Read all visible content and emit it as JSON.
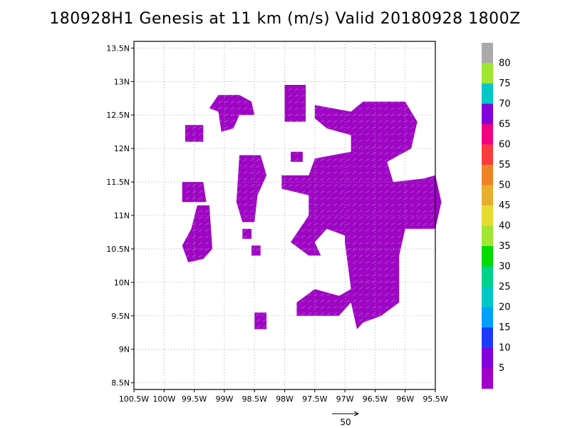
{
  "title": "180928H1 Genesis at 11 km (m/s) Valid 20180928 1800Z",
  "colors": {
    "wind_fill": "#9f06c4",
    "wind_fill_deep": "#7d11dc",
    "arrow": "#d9c9f0",
    "grid": "#9a9a9a"
  },
  "chart_data": {
    "type": "heatmap",
    "title": "180928H1 Genesis at 11 km (m/s) Valid 20180928 1800Z",
    "x_ticks": [
      "100.5W",
      "100W",
      "99.5W",
      "99W",
      "98.5W",
      "98W",
      "97.5W",
      "97W",
      "96.5W",
      "96W",
      "95.5W"
    ],
    "y_ticks": [
      "8.5N",
      "9N",
      "9.5N",
      "10N",
      "10.5N",
      "11N",
      "11.5N",
      "12N",
      "12.5N",
      "13N",
      "13.5N"
    ],
    "lon_range": [
      -100.5,
      -95.5
    ],
    "lat_range": [
      8.4,
      13.6
    ],
    "grid": true,
    "colorbar": {
      "labels": [
        "5",
        "10",
        "15",
        "20",
        "25",
        "30",
        "35",
        "40",
        "45",
        "50",
        "55",
        "60",
        "65",
        "70",
        "75",
        "80"
      ],
      "colors": [
        "#a000c8",
        "#8200dc",
        "#1e3cff",
        "#00a0ff",
        "#00c8c8",
        "#00d28c",
        "#00dc00",
        "#a0e632",
        "#e6dc32",
        "#e6af2d",
        "#f08228",
        "#fa3c3c",
        "#f00082",
        "#8200dc",
        "#00c8c8",
        "#a0e632",
        "#aaaaaa"
      ]
    },
    "wind_regions_lonlat": [
      [
        [
          -99.65,
          12.35
        ],
        [
          -99.35,
          12.35
        ],
        [
          -99.35,
          12.1
        ],
        [
          -99.65,
          12.1
        ]
      ],
      [
        [
          -99.1,
          12.8
        ],
        [
          -98.75,
          12.8
        ],
        [
          -98.55,
          12.7
        ],
        [
          -98.5,
          12.5
        ],
        [
          -98.75,
          12.5
        ],
        [
          -98.85,
          12.3
        ],
        [
          -99.05,
          12.25
        ],
        [
          -99.1,
          12.55
        ],
        [
          -99.25,
          12.6
        ]
      ],
      [
        [
          -99.7,
          11.5
        ],
        [
          -99.35,
          11.5
        ],
        [
          -99.3,
          11.2
        ],
        [
          -99.7,
          11.2
        ]
      ],
      [
        [
          -99.45,
          11.15
        ],
        [
          -99.25,
          11.15
        ],
        [
          -99.2,
          10.5
        ],
        [
          -99.35,
          10.35
        ],
        [
          -99.6,
          10.3
        ],
        [
          -99.7,
          10.55
        ],
        [
          -99.55,
          10.8
        ]
      ],
      [
        [
          -98.75,
          11.9
        ],
        [
          -98.4,
          11.9
        ],
        [
          -98.3,
          11.6
        ],
        [
          -98.45,
          11.3
        ],
        [
          -98.5,
          10.9
        ],
        [
          -98.7,
          10.9
        ],
        [
          -98.8,
          11.2
        ]
      ],
      [
        [
          -98.7,
          10.8
        ],
        [
          -98.55,
          10.8
        ],
        [
          -98.55,
          10.65
        ],
        [
          -98.7,
          10.65
        ]
      ],
      [
        [
          -98.55,
          10.55
        ],
        [
          -98.4,
          10.55
        ],
        [
          -98.4,
          10.4
        ],
        [
          -98.55,
          10.4
        ]
      ],
      [
        [
          -98.5,
          9.55
        ],
        [
          -98.3,
          9.55
        ],
        [
          -98.3,
          9.3
        ],
        [
          -98.5,
          9.3
        ]
      ],
      [
        [
          -98.0,
          12.95
        ],
        [
          -97.65,
          12.95
        ],
        [
          -97.65,
          12.4
        ],
        [
          -98.0,
          12.4
        ]
      ],
      [
        [
          -97.5,
          12.65
        ],
        [
          -96.9,
          12.55
        ],
        [
          -96.7,
          12.7
        ],
        [
          -96.0,
          12.7
        ],
        [
          -95.8,
          12.4
        ],
        [
          -95.9,
          12.0
        ],
        [
          -96.1,
          11.9
        ],
        [
          -96.3,
          11.8
        ],
        [
          -96.2,
          11.5
        ],
        [
          -95.7,
          11.55
        ],
        [
          -95.5,
          11.6
        ],
        [
          -95.4,
          11.2
        ],
        [
          -95.5,
          10.8
        ],
        [
          -96.0,
          10.8
        ],
        [
          -96.1,
          10.4
        ],
        [
          -96.1,
          9.7
        ],
        [
          -96.4,
          9.5
        ],
        [
          -96.7,
          9.4
        ],
        [
          -96.8,
          9.3
        ],
        [
          -96.9,
          9.7
        ],
        [
          -97.1,
          9.5
        ],
        [
          -97.5,
          9.5
        ],
        [
          -97.8,
          9.5
        ],
        [
          -97.8,
          9.7
        ],
        [
          -97.5,
          9.9
        ],
        [
          -97.1,
          9.8
        ],
        [
          -96.9,
          9.9
        ],
        [
          -97.0,
          10.6
        ],
        [
          -97.0,
          10.7
        ],
        [
          -97.3,
          10.8
        ],
        [
          -97.5,
          10.6
        ],
        [
          -97.4,
          10.4
        ],
        [
          -97.6,
          10.4
        ],
        [
          -97.9,
          10.6
        ],
        [
          -97.6,
          11.0
        ],
        [
          -97.6,
          11.3
        ],
        [
          -98.05,
          11.4
        ],
        [
          -98.05,
          11.6
        ],
        [
          -97.6,
          11.6
        ],
        [
          -97.5,
          11.85
        ],
        [
          -97.2,
          11.9
        ],
        [
          -96.9,
          11.95
        ],
        [
          -96.9,
          12.2
        ],
        [
          -97.3,
          12.3
        ],
        [
          -97.5,
          12.45
        ]
      ],
      [
        [
          -97.9,
          11.95
        ],
        [
          -97.7,
          11.95
        ],
        [
          -97.7,
          11.8
        ],
        [
          -97.9,
          11.8
        ]
      ]
    ]
  },
  "colorbar": {
    "labels": [
      "5",
      "10",
      "15",
      "20",
      "25",
      "30",
      "35",
      "40",
      "45",
      "50",
      "55",
      "60",
      "65",
      "70",
      "75",
      "80"
    ]
  },
  "ref_vector": {
    "label": "50"
  }
}
